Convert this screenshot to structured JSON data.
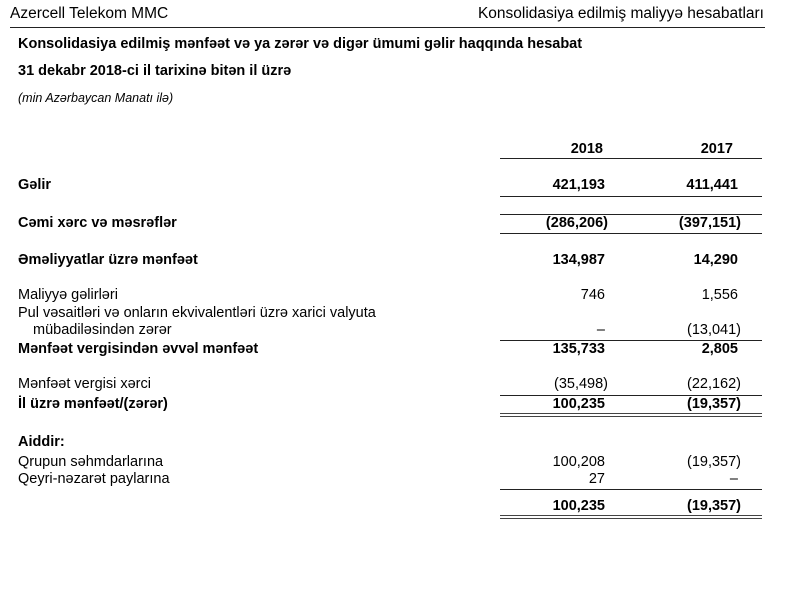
{
  "header": {
    "company": "Azercell Telekom MMC",
    "document": "Konsolidasiya edilmiş maliyyə hesabatları"
  },
  "title": "Konsolidasiya edilmiş mənfəət və ya zərər və digər ümumi gəlir haqqında hesabat",
  "subtitle": "31 dekabr 2018-ci il tarixinə bitən il üzrə",
  "units": "(min Azərbaycan Manatı ilə)",
  "columns": [
    "2018",
    "2017"
  ],
  "rows": [
    {
      "label": "Gəlir",
      "v2018": "421,193",
      "v2017": "411,441"
    },
    {
      "label": "Cəmi xərc və məsrəflər",
      "v2018": "(286,206)",
      "v2017": "(397,151)"
    },
    {
      "label": "Əməliyyatlar üzrə mənfəət",
      "v2018": "134,987",
      "v2017": "14,290"
    },
    {
      "label": "Maliyyə gəlirləri",
      "v2018": "746",
      "v2017": "1,556"
    },
    {
      "label": "Pul vəsaitləri və onların ekvivalentləri üzrə xarici valyuta",
      "label2": "mübadiləsindən zərər",
      "v2018": "–",
      "v2017": "(13,041)"
    },
    {
      "label": "Mənfəət vergisindən əvvəl mənfəət",
      "v2018": "135,733",
      "v2017": "2,805"
    },
    {
      "label": "Mənfəət vergisi xərci",
      "v2018": "(35,498)",
      "v2017": "(22,162)"
    },
    {
      "label": "İl üzrə mənfəət/(zərər)",
      "v2018": "100,235",
      "v2017": "(19,357)"
    },
    {
      "label": "Aiddir:"
    },
    {
      "label": "Qrupun səhmdarlarına",
      "v2018": "100,208",
      "v2017": "(19,357)"
    },
    {
      "label": "Qeyri-nəzarət paylarına",
      "v2018": "27",
      "v2017": "–"
    },
    {
      "label": "",
      "v2018": "100,235",
      "v2017": "(19,357)"
    }
  ]
}
